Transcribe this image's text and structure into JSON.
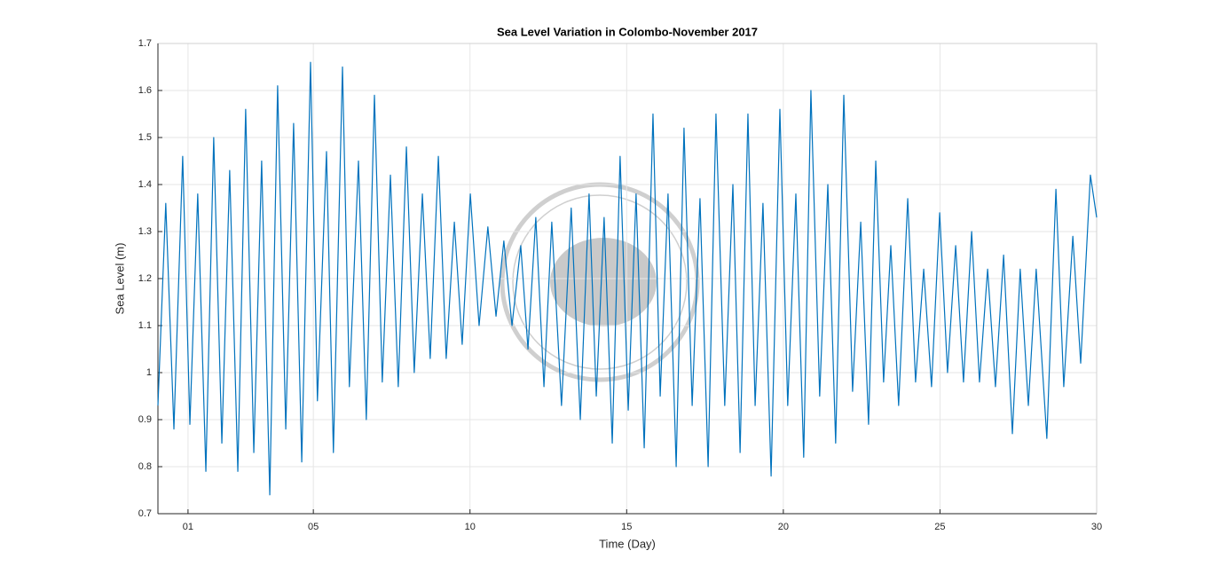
{
  "chart_data": {
    "type": "line",
    "title": "Sea Level Variation in Colombo-November 2017",
    "x_label": "Time (Day)",
    "y_label": "Sea Level (m)",
    "color": "#0072bd",
    "grid": true,
    "xlim": [
      0.04,
      30
    ],
    "ylim": [
      0.7,
      1.7
    ],
    "xticks": [
      {
        "value": 1,
        "label": "01"
      },
      {
        "value": 5,
        "label": "05"
      },
      10,
      15,
      20,
      25,
      30
    ],
    "yticks": [
      0.7,
      0.8,
      0.9,
      1,
      1.1,
      1.2,
      1.3,
      1.4,
      1.5,
      1.6,
      1.7
    ],
    "x": [
      0.04,
      0.29,
      0.55,
      0.83,
      1.06,
      1.31,
      1.57,
      1.82,
      2.08,
      2.33,
      2.59,
      2.84,
      3.1,
      3.35,
      3.61,
      3.86,
      4.12,
      4.37,
      4.63,
      4.91,
      5.13,
      5.42,
      5.64,
      5.93,
      6.15,
      6.44,
      6.69,
      6.95,
      7.2,
      7.46,
      7.71,
      7.97,
      8.22,
      8.48,
      8.73,
      8.99,
      9.24,
      9.5,
      9.75,
      10.01,
      10.29,
      10.57,
      10.83,
      11.08,
      11.34,
      11.62,
      11.85,
      12.1,
      12.36,
      12.61,
      12.92,
      13.23,
      13.52,
      13.8,
      14.03,
      14.28,
      14.54,
      14.79,
      15.05,
      15.3,
      15.56,
      15.84,
      16.07,
      16.32,
      16.58,
      16.83,
      17.09,
      17.34,
      17.6,
      17.85,
      18.13,
      18.39,
      18.62,
      18.87,
      19.1,
      19.35,
      19.61,
      19.89,
      20.14,
      20.4,
      20.65,
      20.88,
      21.16,
      21.42,
      21.67,
      21.93,
      22.21,
      22.47,
      22.72,
      22.95,
      23.2,
      23.43,
      23.68,
      23.97,
      24.22,
      24.48,
      24.73,
      24.99,
      25.24,
      25.5,
      25.75,
      26.01,
      26.26,
      26.52,
      26.77,
      27.03,
      27.31,
      27.56,
      27.82,
      28.07,
      28.41,
      28.7,
      28.95,
      29.24,
      29.49,
      29.8,
      30.0
    ],
    "values": [
      0.93,
      1.36,
      0.88,
      1.46,
      0.89,
      1.38,
      0.79,
      1.5,
      0.85,
      1.43,
      0.79,
      1.56,
      0.83,
      1.45,
      0.74,
      1.61,
      0.88,
      1.53,
      0.81,
      1.66,
      0.94,
      1.47,
      0.83,
      1.65,
      0.97,
      1.45,
      0.9,
      1.59,
      0.98,
      1.42,
      0.97,
      1.48,
      1.0,
      1.38,
      1.03,
      1.46,
      1.03,
      1.32,
      1.06,
      1.38,
      1.1,
      1.31,
      1.12,
      1.28,
      1.1,
      1.27,
      1.05,
      1.33,
      0.97,
      1.32,
      0.93,
      1.35,
      0.9,
      1.38,
      0.95,
      1.33,
      0.85,
      1.46,
      0.92,
      1.38,
      0.84,
      1.55,
      0.95,
      1.38,
      0.8,
      1.52,
      0.93,
      1.37,
      0.8,
      1.55,
      0.93,
      1.4,
      0.83,
      1.55,
      0.93,
      1.36,
      0.78,
      1.56,
      0.93,
      1.38,
      0.82,
      1.6,
      0.95,
      1.4,
      0.85,
      1.59,
      0.96,
      1.32,
      0.89,
      1.45,
      0.98,
      1.27,
      0.93,
      1.37,
      0.98,
      1.22,
      0.97,
      1.34,
      1.0,
      1.27,
      0.98,
      1.3,
      0.98,
      1.22,
      0.97,
      1.25,
      0.87,
      1.22,
      0.93,
      1.22,
      0.86,
      1.39,
      0.97,
      1.29,
      1.02,
      1.42,
      1.33
    ]
  }
}
